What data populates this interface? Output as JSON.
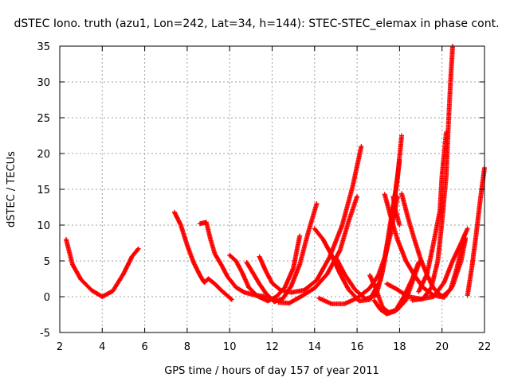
{
  "chart_data": {
    "type": "scatter",
    "title": "dSTEC Iono. truth (azu1, Lon=242, Lat=34, h=144): STEC-STEC_elemax in phase cont.",
    "xlabel": "GPS time / hours of day 157 of year 2011",
    "ylabel": "dSTEC  / TECUs",
    "xlim": [
      2,
      22
    ],
    "ylim": [
      -5,
      35
    ],
    "x_ticks": [
      2,
      4,
      6,
      8,
      10,
      12,
      14,
      16,
      18,
      20,
      22
    ],
    "y_ticks": [
      -5,
      0,
      5,
      10,
      15,
      20,
      25,
      30,
      35
    ],
    "grid": true,
    "marker": "plus",
    "color": "#ff0000",
    "arcs": [
      {
        "points": [
          [
            2.3,
            8.0
          ],
          [
            2.6,
            4.5
          ],
          [
            3.0,
            2.4
          ],
          [
            3.5,
            0.9
          ],
          [
            4.0,
            0.0
          ],
          [
            4.5,
            0.8
          ],
          [
            5.0,
            3.2
          ],
          [
            5.4,
            5.6
          ],
          [
            5.7,
            6.7
          ]
        ]
      },
      {
        "points": [
          [
            7.4,
            11.8
          ],
          [
            7.7,
            10.0
          ],
          [
            8.0,
            7.2
          ],
          [
            8.3,
            4.8
          ],
          [
            8.6,
            3.0
          ],
          [
            8.8,
            2.0
          ],
          [
            9.0,
            2.5
          ],
          [
            9.3,
            1.8
          ],
          [
            9.6,
            0.9
          ],
          [
            10.1,
            -0.4
          ]
        ]
      },
      {
        "points": [
          [
            8.6,
            10.2
          ],
          [
            8.9,
            10.4
          ],
          [
            9.1,
            8.0
          ],
          [
            9.3,
            6.0
          ],
          [
            9.6,
            4.5
          ],
          [
            9.9,
            2.8
          ],
          [
            10.3,
            1.3
          ],
          [
            10.7,
            0.6
          ],
          [
            11.2,
            0.2
          ],
          [
            11.8,
            0.0
          ]
        ]
      },
      {
        "points": [
          [
            10.0,
            5.8
          ],
          [
            10.3,
            5.0
          ],
          [
            10.6,
            3.3
          ],
          [
            10.9,
            1.3
          ],
          [
            11.3,
            0.1
          ],
          [
            11.8,
            -0.6
          ],
          [
            12.2,
            0.0
          ],
          [
            12.6,
            1.3
          ],
          [
            13.0,
            4.0
          ],
          [
            13.3,
            8.5
          ]
        ]
      },
      {
        "points": [
          [
            10.8,
            4.8
          ],
          [
            11.1,
            3.3
          ],
          [
            11.4,
            1.8
          ],
          [
            11.7,
            0.5
          ],
          [
            12.1,
            -0.7
          ],
          [
            12.5,
            -0.3
          ],
          [
            12.9,
            1.5
          ],
          [
            13.3,
            4.5
          ],
          [
            13.7,
            9.0
          ],
          [
            14.1,
            13.0
          ]
        ]
      },
      {
        "points": [
          [
            11.4,
            5.6
          ],
          [
            11.7,
            3.6
          ],
          [
            12.0,
            1.9
          ],
          [
            12.4,
            0.9
          ],
          [
            12.9,
            0.6
          ],
          [
            13.5,
            0.9
          ],
          [
            14.1,
            2.3
          ],
          [
            14.7,
            5.5
          ],
          [
            15.3,
            10.0
          ],
          [
            15.8,
            15.5
          ],
          [
            16.2,
            21.0
          ]
        ]
      },
      {
        "points": [
          [
            12.3,
            -0.8
          ],
          [
            12.8,
            -0.9
          ],
          [
            13.4,
            0.1
          ],
          [
            14.0,
            1.2
          ],
          [
            14.6,
            3.2
          ],
          [
            15.2,
            6.5
          ],
          [
            15.6,
            10.5
          ],
          [
            16.0,
            14.0
          ]
        ]
      },
      {
        "points": [
          [
            14.0,
            9.5
          ],
          [
            14.4,
            8.0
          ],
          [
            14.8,
            5.8
          ],
          [
            15.2,
            3.2
          ],
          [
            15.6,
            1.0
          ],
          [
            16.1,
            -0.6
          ],
          [
            16.6,
            -0.4
          ],
          [
            17.1,
            2.3
          ],
          [
            17.5,
            8.0
          ],
          [
            17.9,
            16.5
          ],
          [
            18.1,
            22.5
          ]
        ]
      },
      {
        "points": [
          [
            14.2,
            -0.2
          ],
          [
            14.8,
            -1.0
          ],
          [
            15.4,
            -1.0
          ],
          [
            16.0,
            -0.2
          ],
          [
            16.6,
            1.2
          ],
          [
            17.0,
            3.0
          ],
          [
            17.3,
            5.5
          ],
          [
            17.6,
            9.0
          ],
          [
            17.9,
            14.0
          ]
        ]
      },
      {
        "points": [
          [
            15.0,
            5.5
          ],
          [
            15.4,
            3.2
          ],
          [
            15.9,
            1.0
          ],
          [
            16.4,
            -0.3
          ],
          [
            16.9,
            0.2
          ],
          [
            17.2,
            3.5
          ],
          [
            17.5,
            9.0
          ],
          [
            17.8,
            14.5
          ],
          [
            18.0,
            19.0
          ]
        ]
      },
      {
        "points": [
          [
            16.6,
            3.0
          ],
          [
            16.9,
            1.0
          ],
          [
            17.2,
            -1.5
          ],
          [
            17.5,
            -2.2
          ],
          [
            17.9,
            -1.8
          ],
          [
            18.3,
            -0.5
          ],
          [
            18.6,
            2.0
          ],
          [
            18.9,
            4.5
          ],
          [
            19.0,
            5.0
          ]
        ]
      },
      {
        "points": [
          [
            16.8,
            -0.5
          ],
          [
            17.1,
            -1.8
          ],
          [
            17.4,
            -2.4
          ],
          [
            17.8,
            -2.0
          ],
          [
            18.2,
            0.0
          ],
          [
            18.6,
            2.5
          ],
          [
            18.9,
            4.8
          ]
        ]
      },
      {
        "points": [
          [
            17.3,
            14.3
          ],
          [
            17.6,
            11.0
          ],
          [
            17.9,
            8.0
          ],
          [
            18.3,
            5.0
          ],
          [
            18.7,
            3.0
          ],
          [
            19.1,
            1.3
          ],
          [
            19.6,
            0.2
          ],
          [
            20.1,
            -0.1
          ],
          [
            20.5,
            1.5
          ],
          [
            20.9,
            5.0
          ],
          [
            21.1,
            8.0
          ]
        ]
      },
      {
        "points": [
          [
            17.7,
            14.0
          ],
          [
            17.8,
            12.2
          ],
          [
            18.0,
            10.0
          ]
        ]
      },
      {
        "points": [
          [
            18.1,
            14.4
          ],
          [
            18.4,
            11.0
          ],
          [
            18.7,
            8.0
          ],
          [
            19.0,
            5.2
          ],
          [
            19.3,
            3.0
          ],
          [
            19.6,
            1.2
          ],
          [
            20.0,
            0.0
          ],
          [
            20.4,
            1.0
          ],
          [
            20.7,
            4.0
          ],
          [
            20.9,
            6.5
          ],
          [
            21.1,
            8.2
          ]
        ]
      },
      {
        "points": [
          [
            17.4,
            1.8
          ],
          [
            17.9,
            1.0
          ],
          [
            18.4,
            0.0
          ],
          [
            19.0,
            -0.3
          ],
          [
            19.6,
            0.0
          ],
          [
            20.1,
            2.0
          ],
          [
            20.5,
            5.0
          ],
          [
            20.9,
            7.5
          ],
          [
            21.2,
            9.5
          ]
        ]
      },
      {
        "points": [
          [
            18.6,
            -0.5
          ],
          [
            19.1,
            -0.3
          ],
          [
            19.5,
            1.3
          ],
          [
            19.8,
            5.0
          ],
          [
            20.0,
            10.5
          ],
          [
            20.2,
            17.0
          ],
          [
            20.3,
            24.0
          ],
          [
            20.4,
            30.0
          ],
          [
            20.5,
            35.0
          ]
        ]
      },
      {
        "points": [
          [
            18.9,
            0.7
          ],
          [
            19.3,
            3.2
          ],
          [
            19.6,
            7.5
          ],
          [
            19.9,
            12.0
          ],
          [
            20.0,
            17.0
          ],
          [
            20.2,
            23.0
          ]
        ]
      },
      {
        "points": [
          [
            21.2,
            0.2
          ],
          [
            21.4,
            4.0
          ],
          [
            21.6,
            8.5
          ],
          [
            21.8,
            13.5
          ],
          [
            22.0,
            18.0
          ]
        ]
      }
    ]
  }
}
